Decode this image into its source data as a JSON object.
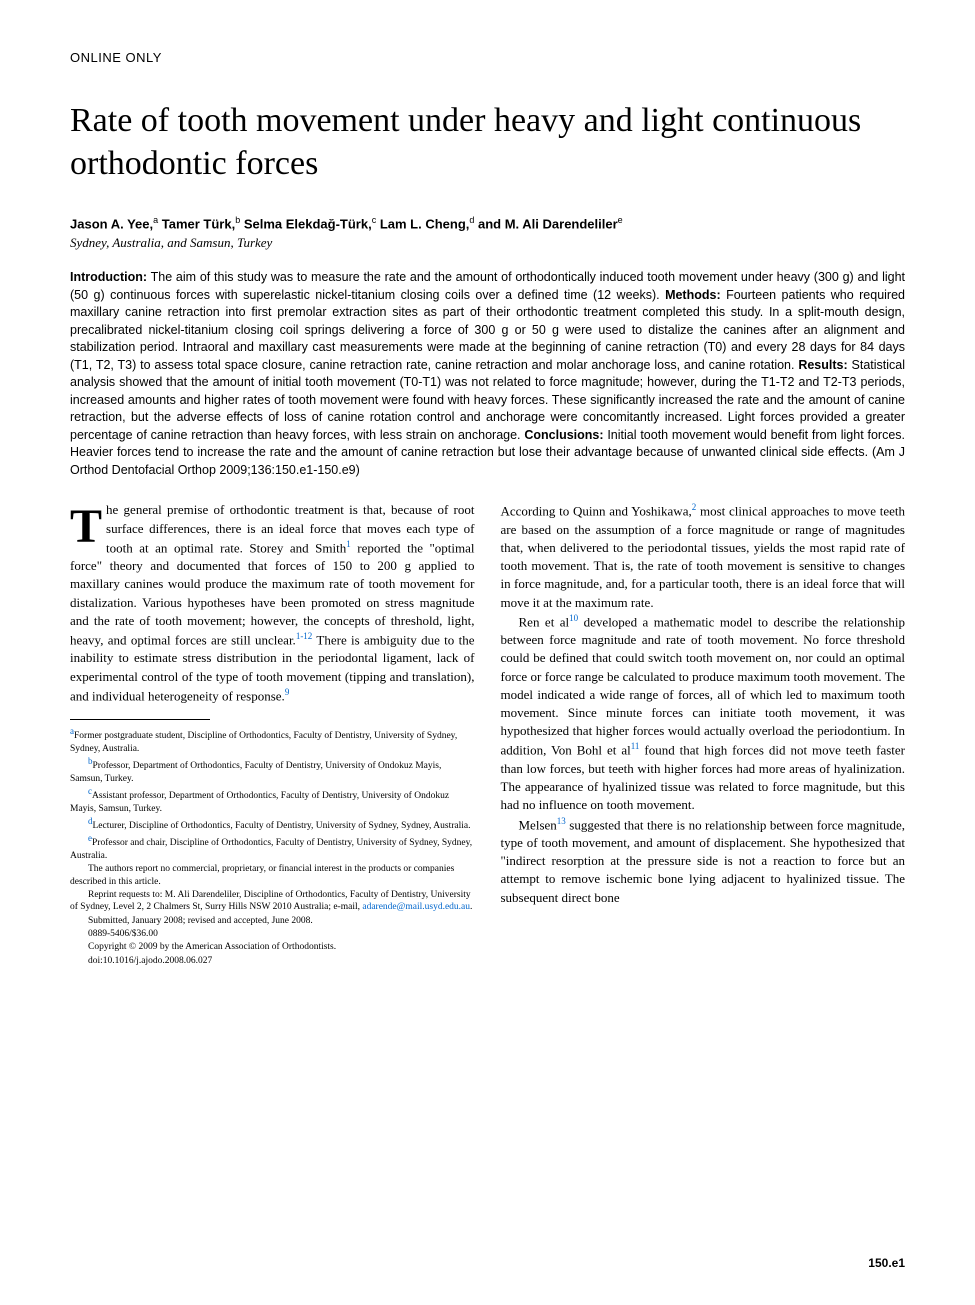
{
  "section_label": "ONLINE ONLY",
  "title": "Rate of tooth movement under heavy and light continuous orthodontic forces",
  "authors_html": "Jason A. Yee,<sup>a</sup> Tamer Türk,<sup>b</sup> Selma Elekdağ-Türk,<sup>c</sup> Lam L. Cheng,<sup>d</sup> and M. Ali Darendeliler<sup>e</sup>",
  "affiliations": "Sydney, Australia, and Samsun, Turkey",
  "abstract": {
    "introduction_label": "Introduction:",
    "introduction": " The aim of this study was to measure the rate and the amount of orthodontically induced tooth movement under heavy (300 g) and light (50 g) continuous forces with superelastic nickel-titanium closing coils over a defined time (12 weeks). ",
    "methods_label": "Methods:",
    "methods": " Fourteen patients who required maxillary canine retraction into first premolar extraction sites as part of their orthodontic treatment completed this study. In a split-mouth design, precalibrated nickel-titanium closing coil springs delivering a force of 300 g or 50 g were used to distalize the canines after an alignment and stabilization period. Intraoral and maxillary cast measurements were made at the beginning of canine retraction (T0) and every 28 days for 84 days (T1, T2, T3) to assess total space closure, canine retraction rate, canine retraction and molar anchorage loss, and canine rotation. ",
    "results_label": "Results:",
    "results": " Statistical analysis showed that the amount of initial tooth movement (T0-T1) was not related to force magnitude; however, during the T1-T2 and T2-T3 periods, increased amounts and higher rates of tooth movement were found with heavy forces. These significantly increased the rate and the amount of canine retraction, but the adverse effects of loss of canine rotation control and anchorage were concomitantly increased. Light forces provided a greater percentage of canine retraction than heavy forces, with less strain on anchorage. ",
    "conclusions_label": "Conclusions:",
    "conclusions": " Initial tooth movement would benefit from light forces. Heavier forces tend to increase the rate and the amount of canine retraction but lose their advantage because of unwanted clinical side effects. (Am J Orthod Dentofacial Orthop 2009;136:150.e1-150.e9)"
  },
  "body": {
    "p1_dropcap": "T",
    "p1": "he general premise of orthodontic treatment is that, because of root surface differences, there is an ideal force that moves each type of tooth at an optimal rate. Storey and Smith",
    "p1_ref1": "1",
    "p1_cont": " reported the \"optimal force\" theory and documented that forces of 150 to 200 g applied to maxillary canines would produce the maximum rate of tooth movement for distalization. Various hypotheses have been promoted on stress magnitude and the rate of tooth movement; however, the concepts of threshold, light, heavy, and optimal forces are still unclear.",
    "p1_ref2": "1-12",
    "p1_cont2": " There is ambiguity due to the inability to estimate stress distribution in the periodontal ligament, lack of experimental control of the type of tooth movement (tipping and translation), and individual heterogeneity of response.",
    "p1_ref3": "9",
    "p2": "According to Quinn and Yoshikawa,",
    "p2_ref1": "2",
    "p2_cont": " most clinical approaches to move teeth are based on the assumption of a force magnitude or range of magnitudes that, when delivered to the periodontal tissues, yields the most rapid rate of tooth movement. That is, the rate of tooth movement is sensitive to changes in force magnitude, and, for a particular tooth, there is an ideal force that will move it at the maximum rate.",
    "p3": "Ren et al",
    "p3_ref1": "10",
    "p3_cont": " developed a mathematic model to describe the relationship between force magnitude and rate of tooth movement. No force threshold could be defined that could switch tooth movement on, nor could an optimal force or force range be calculated to produce maximum tooth movement. The model indicated a wide range of forces, all of which led to maximum tooth movement. Since minute forces can initiate tooth movement, it was hypothesized that higher forces would actually overload the periodontium. In addition, Von Bohl et al",
    "p3_ref2": "11",
    "p3_cont2": " found that high forces did not move teeth faster than low forces, but teeth with higher forces had more areas of hyalinization. The appearance of hyalinized tissue was related to force magnitude, but this had no influence on tooth movement.",
    "p4": "Melsen",
    "p4_ref1": "13",
    "p4_cont": " suggested that there is no relationship between force magnitude, type of tooth movement, and amount of displacement. She hypothesized that \"indirect resorption at the pressure side is not a reaction to force but an attempt to remove ischemic bone lying adjacent to hyalinized tissue. The subsequent direct bone"
  },
  "footnotes": {
    "a": "Former postgraduate student, Discipline of Orthodontics, Faculty of Dentistry, University of Sydney, Sydney, Australia.",
    "b": "Professor, Department of Orthodontics, Faculty of Dentistry, University of Ondokuz Mayis, Samsun, Turkey.",
    "c": "Assistant professor, Department of Orthodontics, Faculty of Dentistry, University of Ondokuz Mayis, Samsun, Turkey.",
    "d": "Lecturer, Discipline of Orthodontics, Faculty of Dentistry, University of Sydney, Sydney, Australia.",
    "e": "Professor and chair, Discipline of Orthodontics, Faculty of Dentistry, University of Sydney, Sydney, Australia.",
    "disclosure": "The authors report no commercial, proprietary, or financial interest in the products or companies described in this article.",
    "reprint": "Reprint requests to: M. Ali Darendeliler, Discipline of Orthodontics, Faculty of Dentistry, University of Sydney, Level 2, 2 Chalmers St, Surry Hills NSW 2010 Australia; e-mail, ",
    "email": "adarende@mail.usyd.edu.au",
    "reprint_end": ".",
    "submitted": "Submitted, January 2008; revised and accepted, June 2008.",
    "issn": "0889-5406/$36.00",
    "copyright": "Copyright © 2009 by the American Association of Orthodontists.",
    "doi": "doi:10.1016/j.ajodo.2008.06.027"
  },
  "page_number": "150.e1",
  "colors": {
    "text": "#000000",
    "background": "#ffffff",
    "link": "#0066cc"
  },
  "typography": {
    "title_fontsize": 34,
    "body_fontsize": 13,
    "abstract_fontsize": 12.5,
    "footnote_fontsize": 9.5,
    "body_font": "Georgia/Times serif",
    "sans_font": "Arial/Helvetica"
  }
}
